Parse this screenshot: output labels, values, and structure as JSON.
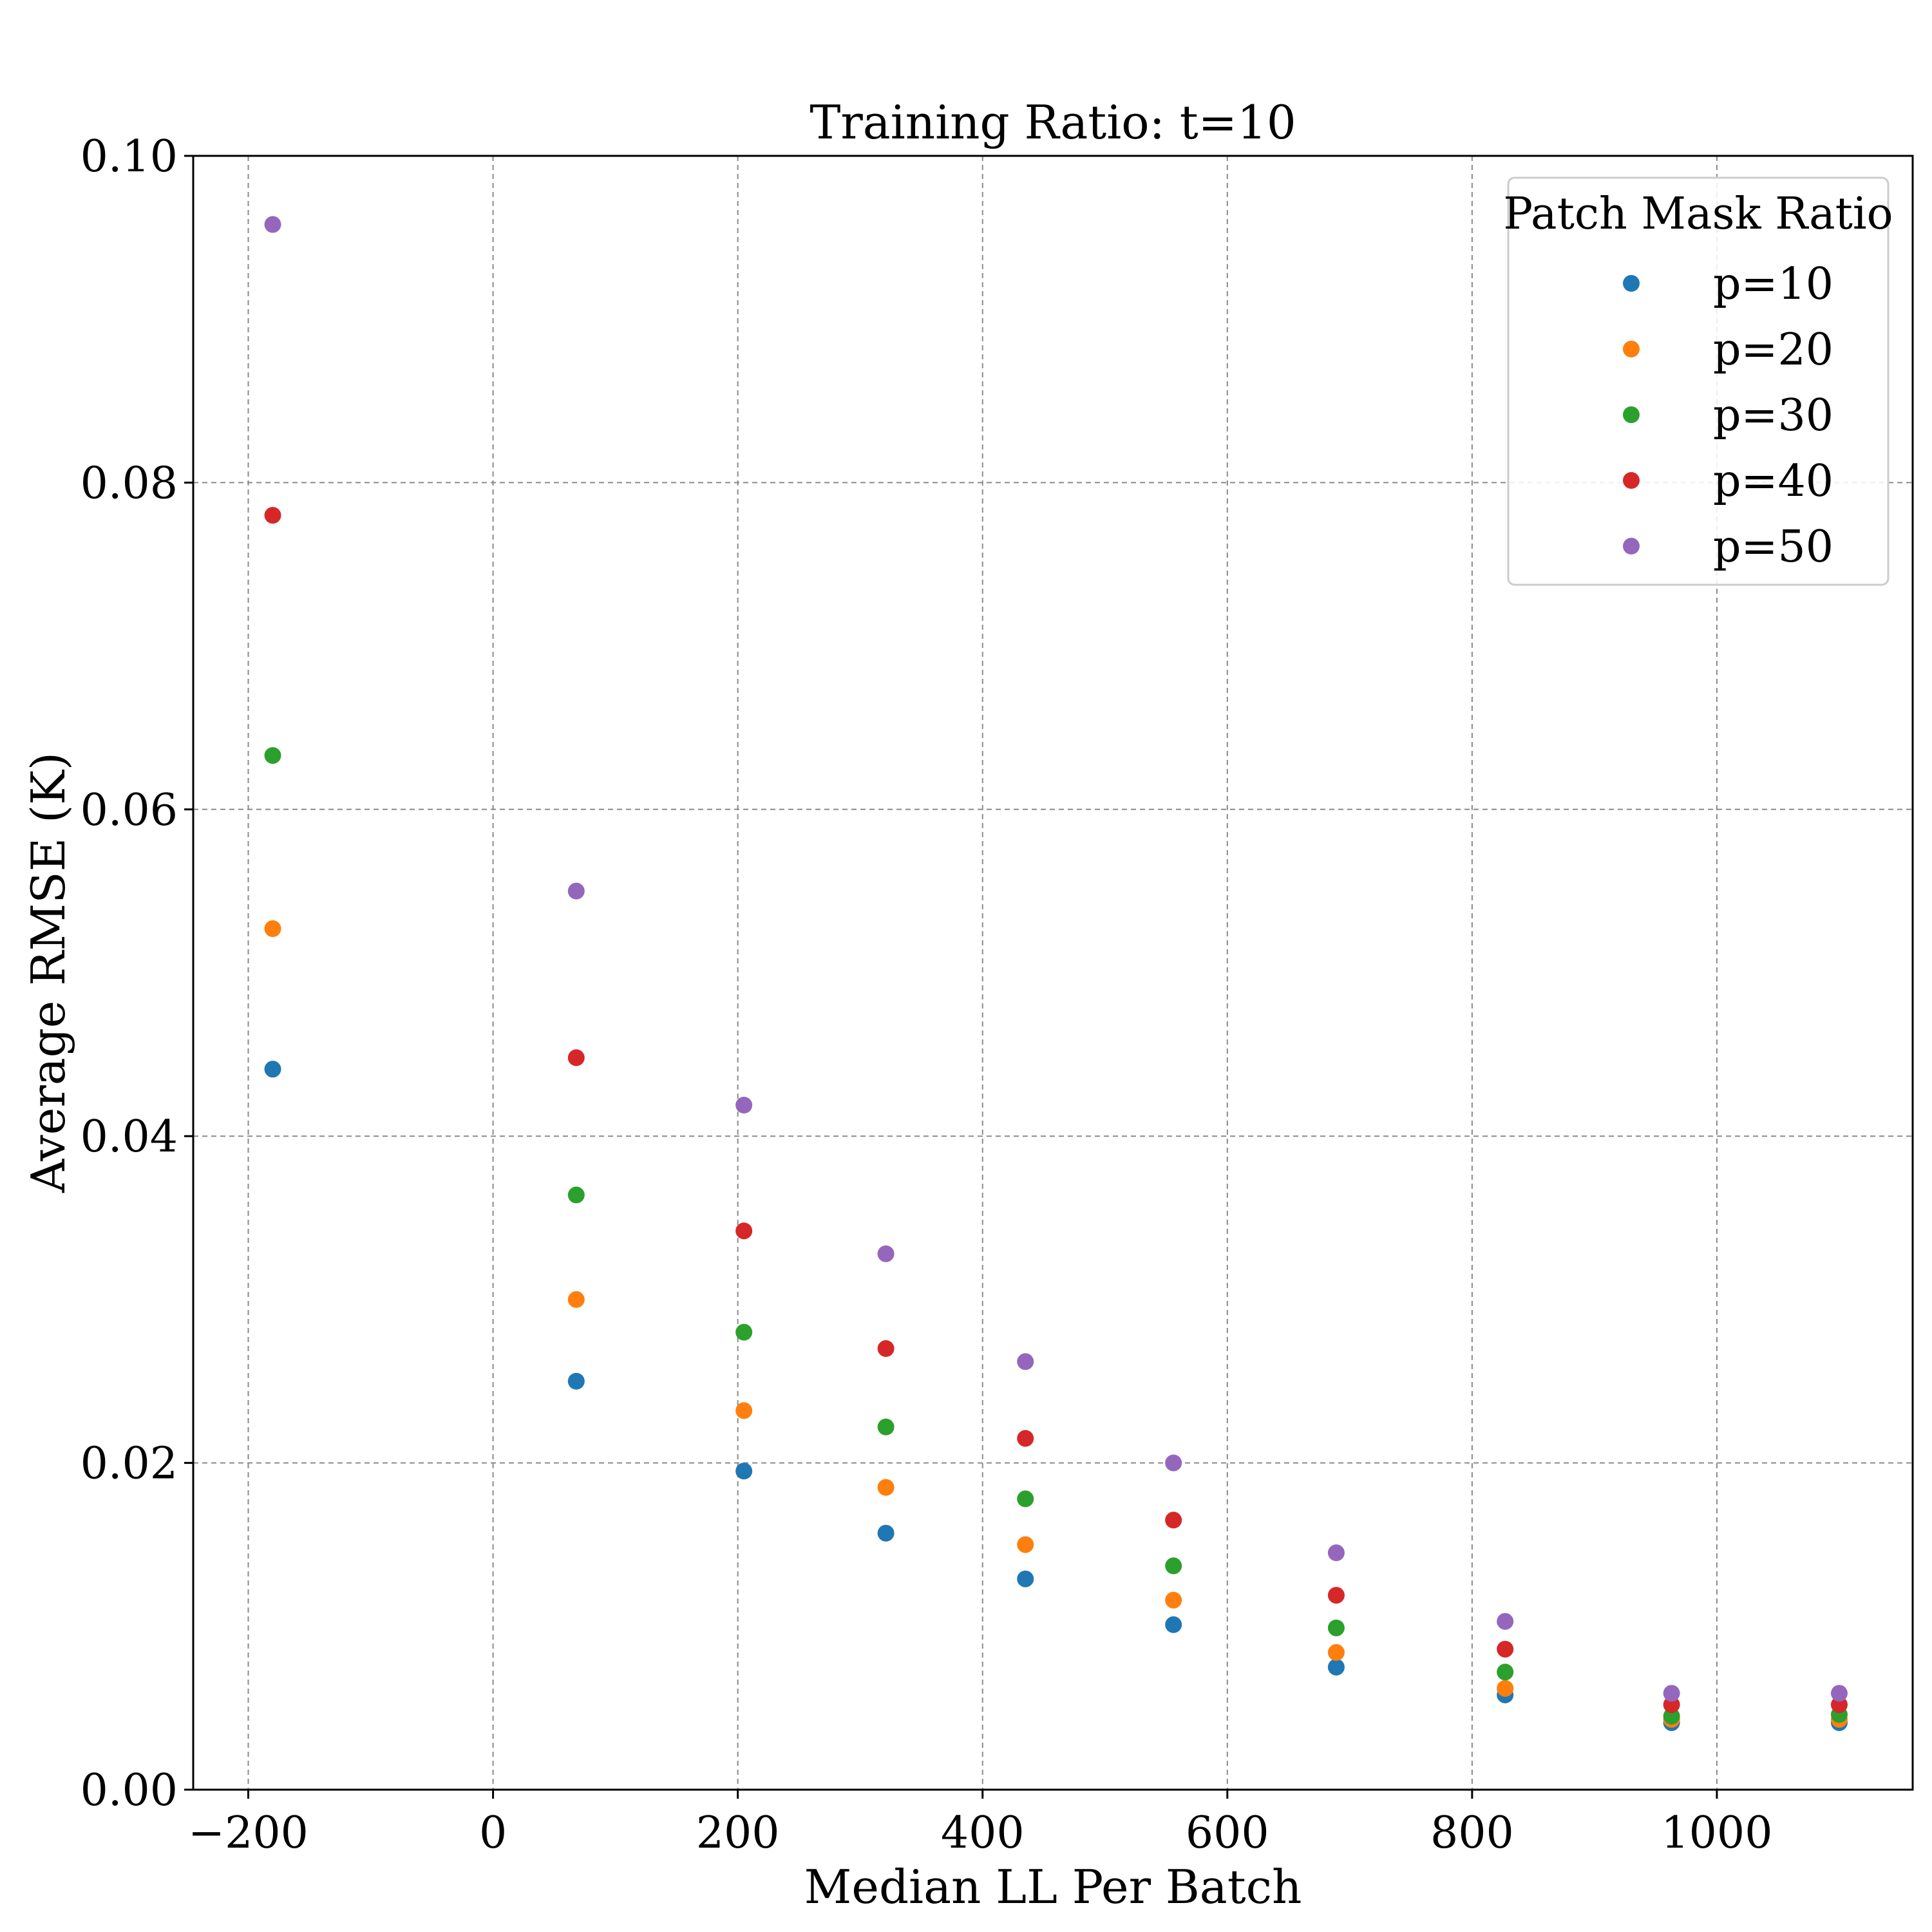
{
  "chart_data": {
    "type": "scatter",
    "title": "Training Ratio: t=10",
    "xlabel": "Median LL Per Batch",
    "ylabel": "Average RMSE (K)",
    "xlim": [
      -245,
      1160
    ],
    "ylim": [
      0.0,
      0.1
    ],
    "xticks": [
      -200,
      0,
      200,
      400,
      600,
      800,
      1000
    ],
    "xtick_labels": [
      "−200",
      "0",
      "200",
      "400",
      "600",
      "800",
      "1000"
    ],
    "yticks": [
      0.0,
      0.02,
      0.04,
      0.06,
      0.08,
      0.1
    ],
    "ytick_labels": [
      "0.00",
      "0.02",
      "0.04",
      "0.06",
      "0.08",
      "0.10"
    ],
    "grid": true,
    "legend": {
      "title": "Patch Mask Ratio",
      "placement": "top-right"
    },
    "x": [
      -180,
      68,
      205,
      321,
      435,
      556,
      689,
      827,
      963,
      1100
    ],
    "series": [
      {
        "name": "p=10",
        "color": "#1f77b4",
        "values": [
          0.0441,
          0.025,
          0.0195,
          0.0157,
          0.0129,
          0.0101,
          0.0075,
          0.0058,
          0.0041,
          0.0041
        ]
      },
      {
        "name": "p=20",
        "color": "#ff7f0e",
        "values": [
          0.0527,
          0.03,
          0.0232,
          0.0185,
          0.015,
          0.0116,
          0.0084,
          0.0062,
          0.0043,
          0.0043
        ]
      },
      {
        "name": "p=30",
        "color": "#2ca02c",
        "values": [
          0.0633,
          0.0364,
          0.028,
          0.0222,
          0.0178,
          0.0137,
          0.0099,
          0.0072,
          0.0045,
          0.0046
        ]
      },
      {
        "name": "p=40",
        "color": "#d62728",
        "values": [
          0.078,
          0.0448,
          0.0342,
          0.027,
          0.0215,
          0.0165,
          0.0119,
          0.0086,
          0.0052,
          0.0052
        ]
      },
      {
        "name": "p=50",
        "color": "#9467bd",
        "values": [
          0.0958,
          0.055,
          0.0419,
          0.0328,
          0.0262,
          0.02,
          0.0145,
          0.0103,
          0.0059,
          0.0059
        ]
      }
    ]
  }
}
